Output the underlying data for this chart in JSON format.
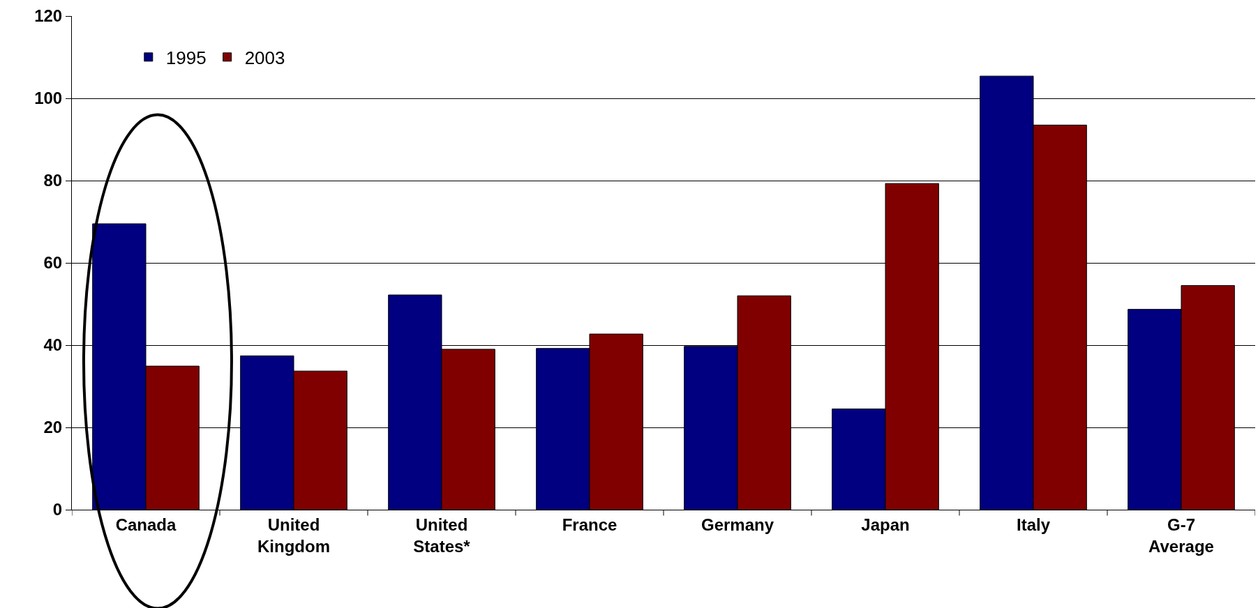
{
  "chart_data": {
    "type": "bar",
    "categories": [
      "Canada",
      "United Kingdom",
      "United States*",
      "France",
      "Germany",
      "Japan",
      "Italy",
      "G-7 Average"
    ],
    "series": [
      {
        "name": "1995",
        "color": "#000080",
        "values": [
          69.5,
          37.4,
          52.2,
          39.2,
          39.7,
          24.5,
          105.4,
          48.7
        ]
      },
      {
        "name": "2003",
        "color": "#800000",
        "values": [
          34.9,
          33.7,
          39.0,
          42.7,
          52.0,
          79.3,
          93.5,
          54.5
        ]
      }
    ],
    "ylim": [
      0,
      120
    ],
    "yticks": [
      0,
      20,
      40,
      60,
      80,
      100,
      120
    ],
    "grid": "y",
    "legend": "top left"
  }
}
